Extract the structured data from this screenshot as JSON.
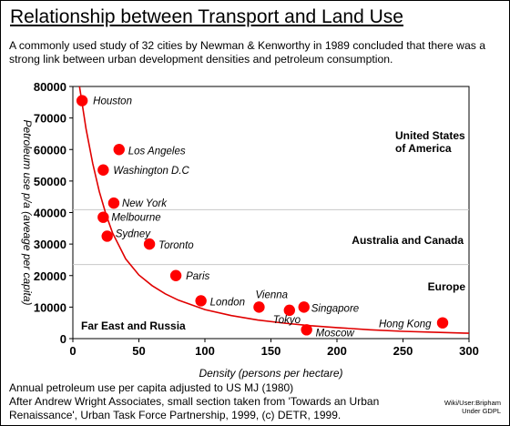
{
  "page": {
    "title": "Relationship between Transport and Land Use",
    "intro": "A commonly used study of 32 cities by Newman & Kenworthy in 1989 concluded that there was a strong link between urban development densities and petroleum consumption.",
    "footer_lines": [
      "Annual petroleum use per capita adjusted to US MJ (1980)",
      "After Andrew Wright Associates, small section taken from 'Towards an Urban",
      "Renaissance', Urban Task Force Partnership, 1999, (c) DETR, 1999."
    ],
    "credit": "Wiki/User:Bripham\nUnder GDPL"
  },
  "chart_data": {
    "type": "scatter",
    "title": "",
    "xlabel": "Density (persons per hectare)",
    "ylabel": "Petroleum use p/a (aveage per capita)",
    "xlim": [
      0,
      300
    ],
    "ylim": [
      0,
      80000
    ],
    "xticks": [
      0,
      50,
      100,
      150,
      200,
      250,
      300
    ],
    "yticks": [
      0,
      10000,
      20000,
      30000,
      40000,
      50000,
      60000,
      70000,
      80000
    ],
    "grid": false,
    "marker_color": "#ff0000",
    "curve_color": "#e00000",
    "points": [
      {
        "label": "Houston",
        "x": 7,
        "y": 75500
      },
      {
        "label": "Los Angeles",
        "x": 35,
        "y": 60000
      },
      {
        "label": "Washington D.C",
        "x": 23,
        "y": 53500
      },
      {
        "label": "New York",
        "x": 31,
        "y": 43000
      },
      {
        "label": "Melbourne",
        "x": 23,
        "y": 38500
      },
      {
        "label": "Sydney",
        "x": 26,
        "y": 32500
      },
      {
        "label": "Toronto",
        "x": 58,
        "y": 30000
      },
      {
        "label": "Paris",
        "x": 78,
        "y": 20000
      },
      {
        "label": "London",
        "x": 97,
        "y": 12000
      },
      {
        "label": "Vienna",
        "x": 141,
        "y": 10000
      },
      {
        "label": "Tokyo",
        "x": 164,
        "y": 9000
      },
      {
        "label": "Singapore",
        "x": 175,
        "y": 10000
      },
      {
        "label": "Moscow",
        "x": 177,
        "y": 2800
      },
      {
        "label": "Hong Kong",
        "x": 280,
        "y": 5000
      }
    ],
    "trendline": [
      [
        5,
        80000
      ],
      [
        10,
        66500
      ],
      [
        15,
        55600
      ],
      [
        20,
        46700
      ],
      [
        25,
        39500
      ],
      [
        30,
        33600
      ],
      [
        40,
        25300
      ],
      [
        50,
        20200
      ],
      [
        60,
        16800
      ],
      [
        70,
        14200
      ],
      [
        80,
        12200
      ],
      [
        100,
        9200
      ],
      [
        120,
        7300
      ],
      [
        140,
        5900
      ],
      [
        160,
        4900
      ],
      [
        180,
        4100
      ],
      [
        200,
        3500
      ],
      [
        225,
        2800
      ],
      [
        250,
        2300
      ],
      [
        275,
        2000
      ],
      [
        300,
        1700
      ]
    ],
    "regions": [
      {
        "label": "United States of America",
        "lines": [
          "United States",
          "of America"
        ]
      },
      {
        "label": "Australia and Canada",
        "lines": [
          "Australia and Canada"
        ]
      },
      {
        "label": "Europe",
        "lines": [
          "Europe"
        ]
      },
      {
        "label": "Far East and Russia",
        "lines": [
          "Far East and Russia"
        ]
      }
    ],
    "region_boundaries_y": [
      40900,
      23500
    ]
  }
}
